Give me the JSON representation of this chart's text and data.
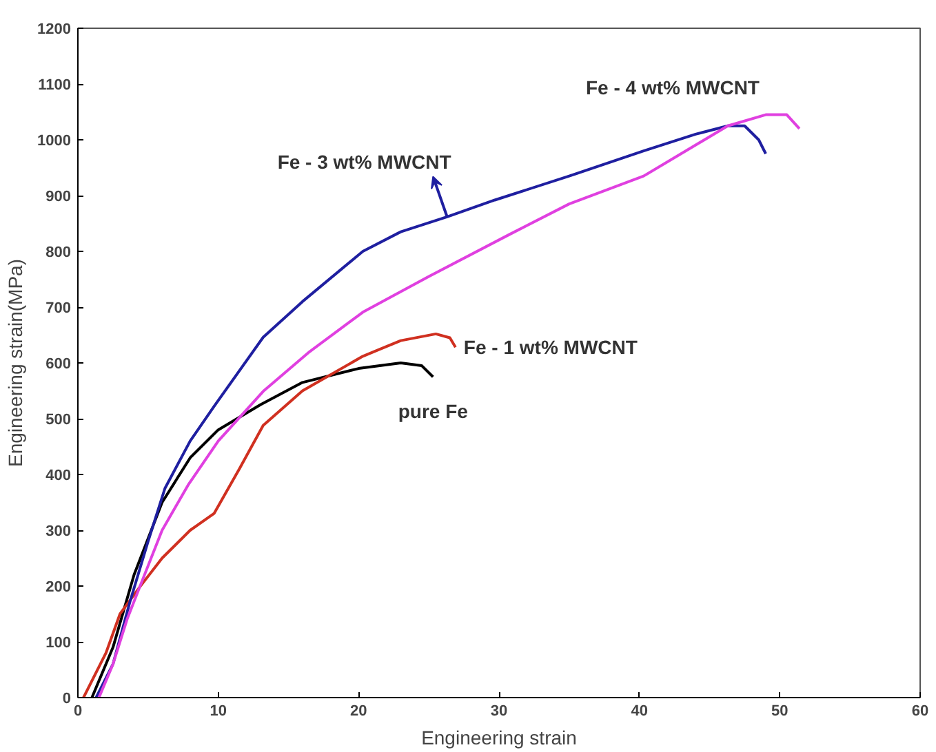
{
  "chart_data": {
    "type": "line",
    "xlabel": "Engineering strain",
    "ylabel": "Engineering strain(MPa)",
    "xlim": [
      0,
      60
    ],
    "ylim": [
      0,
      1200
    ],
    "xticks": [
      0,
      10,
      20,
      30,
      40,
      50,
      60
    ],
    "yticks": [
      0,
      100,
      200,
      300,
      400,
      500,
      600,
      700,
      800,
      900,
      1000,
      1100,
      1200
    ],
    "grid": false,
    "marker": "none",
    "line_style": "solid",
    "series": [
      {
        "name": "pure Fe",
        "color": "#000000",
        "x": [
          1,
          2.5,
          4,
          6,
          8,
          10,
          13,
          16,
          20,
          23,
          24.5,
          25.3
        ],
        "values": [
          0,
          90,
          220,
          350,
          430,
          480,
          525,
          565,
          590,
          600,
          595,
          575
        ]
      },
      {
        "name": "Fe - 1 wt% MWCNT",
        "color": "#d03020",
        "x": [
          0.4,
          2,
          3,
          4.4,
          6,
          8,
          9.7,
          11.5,
          13.2,
          16,
          20.3,
          23,
          25.5,
          26.5,
          26.9
        ],
        "values": [
          0,
          80,
          150,
          198,
          250,
          300,
          330,
          410,
          488,
          550,
          612,
          640,
          652,
          645,
          628
        ]
      },
      {
        "name": "Fe - 3 wt% MWCNT",
        "color": "#1f1fa0",
        "x": [
          1.3,
          2.5,
          3.7,
          5,
          6.2,
          8,
          9.7,
          13.2,
          16,
          20.3,
          23,
          26.3,
          29.7,
          35,
          40.3,
          44,
          46.3,
          47.5,
          48.5,
          49
        ],
        "values": [
          0,
          60,
          171,
          280,
          375,
          460,
          522,
          646,
          710,
          800,
          835,
          862,
          892,
          935,
          980,
          1010,
          1025,
          1025,
          1000,
          975
        ]
      },
      {
        "name": "Fe - 4 wt% MWCNT",
        "color": "#e040e0",
        "x": [
          1.5,
          2.5,
          3.5,
          4.4,
          6,
          7.9,
          10,
          13.2,
          16.5,
          20.3,
          25,
          30.8,
          35,
          40.3,
          46.3,
          49,
          50.5,
          51.4
        ],
        "values": [
          0,
          60,
          140,
          198,
          300,
          383,
          460,
          549,
          620,
          691,
          755,
          831,
          885,
          935,
          1025,
          1045,
          1045,
          1020
        ]
      }
    ]
  }
}
